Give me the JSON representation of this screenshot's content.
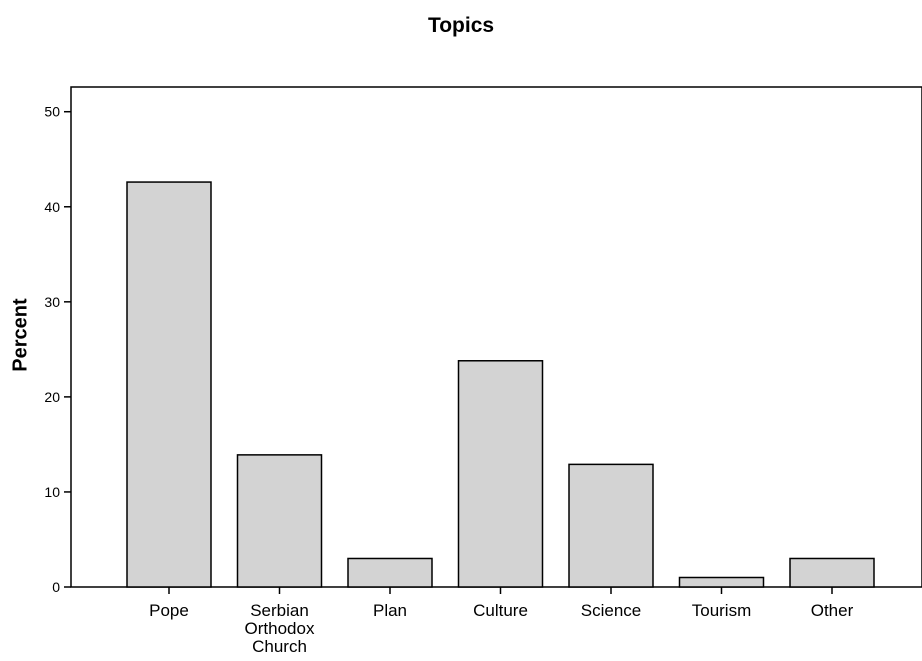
{
  "chart_data": {
    "type": "bar",
    "title": "Topics",
    "xlabel": "",
    "ylabel": "Percent",
    "ylim": [
      0,
      50
    ],
    "yticks": [
      0,
      10,
      20,
      30,
      40,
      50
    ],
    "categories": [
      "Pope",
      "Serbian Orthodox Church",
      "Plan",
      "Culture",
      "Science",
      "Tourism",
      "Other"
    ],
    "category_lines": [
      [
        "Pope"
      ],
      [
        "Serbian",
        "Orthodox",
        "Church"
      ],
      [
        "Plan"
      ],
      [
        "Culture"
      ],
      [
        "Science"
      ],
      [
        "Tourism"
      ],
      [
        "Other"
      ]
    ],
    "values": [
      42.6,
      13.9,
      3.0,
      23.8,
      12.9,
      1.0,
      3.0
    ],
    "grid": false,
    "colors": {
      "bar_fill": "#d3d3d3",
      "bar_stroke": "#000000"
    }
  }
}
